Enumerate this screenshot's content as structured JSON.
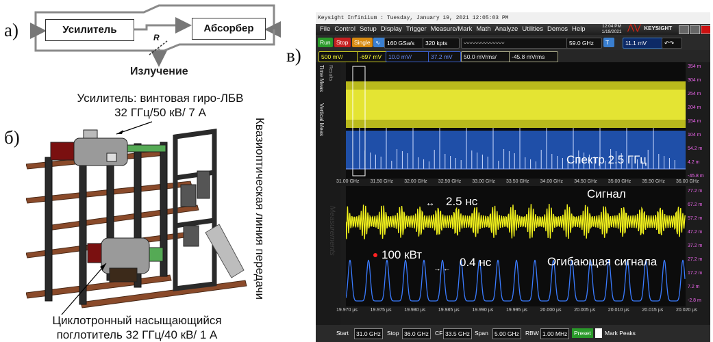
{
  "panel_labels": {
    "a": "а)",
    "b": "б)",
    "c": "в)"
  },
  "diagram_a": {
    "amplifier": "Усилитель",
    "absorber": "Абсорбер",
    "r_label": "R",
    "output": "Излучение"
  },
  "panel_b": {
    "amplifier_caption_1": "Усилитель: винтовая гиро-ЛБВ",
    "amplifier_caption_2": "32 ГГц/50 кВ/ 7 А",
    "line_caption": "Квазиоптическая линия передачи",
    "absorber_caption_1": "Циклотронный насыщающийся",
    "absorber_caption_2": "поглотитель 32 ГГц/40 кВ/ 1 А"
  },
  "scope": {
    "title_bar": "Keysight Infiniium : Tuesday, January 19, 2021 12:05:03 PM",
    "menu": [
      "File",
      "Control",
      "Setup",
      "Display",
      "Trigger",
      "Measure/Mark",
      "Math",
      "Analyze",
      "Utilities",
      "Demos",
      "Help"
    ],
    "clock_time": "12:04 PM",
    "clock_date": "1/19/2021",
    "brand": "KEYSIGHT",
    "brand_sub": "TECHNOLOGIES",
    "run": "Run",
    "stop": "Stop",
    "single": "Single",
    "sample_rate": "160 GSa/s",
    "points": "320 kpts",
    "freq": "59.0 GHz",
    "trigger_level": "11.1 mV",
    "ch1_scale": "500 mV/",
    "ch1_offset": "-697 mV",
    "ch3_scale": "10.0 mV/",
    "ch3_offset": "37.2 mV",
    "f1_scale": "50.0 mVrms/",
    "f1_offset": "-45.8 mVrms",
    "side_tabs": [
      "Time Meas",
      "Vertical Meas",
      "Results"
    ],
    "measurements_watermark": "Measurements",
    "spec_x_labels": [
      "31.00 GHz",
      "31.50 GHz",
      "32.00 GHz",
      "32.50 GHz",
      "33.00 GHz",
      "33.50 GHz",
      "34.00 GHz",
      "34.50 GHz",
      "35.00 GHz",
      "35.50 GHz",
      "36.00 GHz"
    ],
    "spec_right_scale": [
      "354 m",
      "304 m",
      "254 m",
      "204 m",
      "154 m",
      "104 m",
      "54.2 m",
      "4.2 m",
      "-45.8 m"
    ],
    "time_x_labels": [
      "19.970 µs",
      "19.975 µs",
      "19.980 µs",
      "19.985 µs",
      "19.990 µs",
      "19.995 µs",
      "20.000 µs",
      "20.005 µs",
      "20.010 µs",
      "20.015 µs",
      "20.020 µs"
    ],
    "time_right_scale": [
      "77.2 m",
      "67.2 m",
      "57.2 m",
      "47.2 m",
      "37.2 m",
      "27.2 m",
      "17.2 m",
      "7.2 m",
      "-2.8 m"
    ],
    "annotations": {
      "spectrum": "Спектр 2.5 ГГц",
      "signal": "Сигнал",
      "period": "2.5 нс",
      "power": "100 кВт",
      "width": "0.4 нс",
      "envelope": "Огибающая сигнала"
    },
    "bottom": {
      "start_label": "Start",
      "start": "31.0 GHz",
      "stop_label": "Stop",
      "stop": "36.0 GHz",
      "cf_label": "CF",
      "cf": "33.5 GHz",
      "span_label": "Span",
      "span": "5.00 GHz",
      "rbw_label": "RBW",
      "rbw": "1.00 MHz",
      "preset": "Preset",
      "mark_peaks": "Mark Peaks"
    }
  }
}
